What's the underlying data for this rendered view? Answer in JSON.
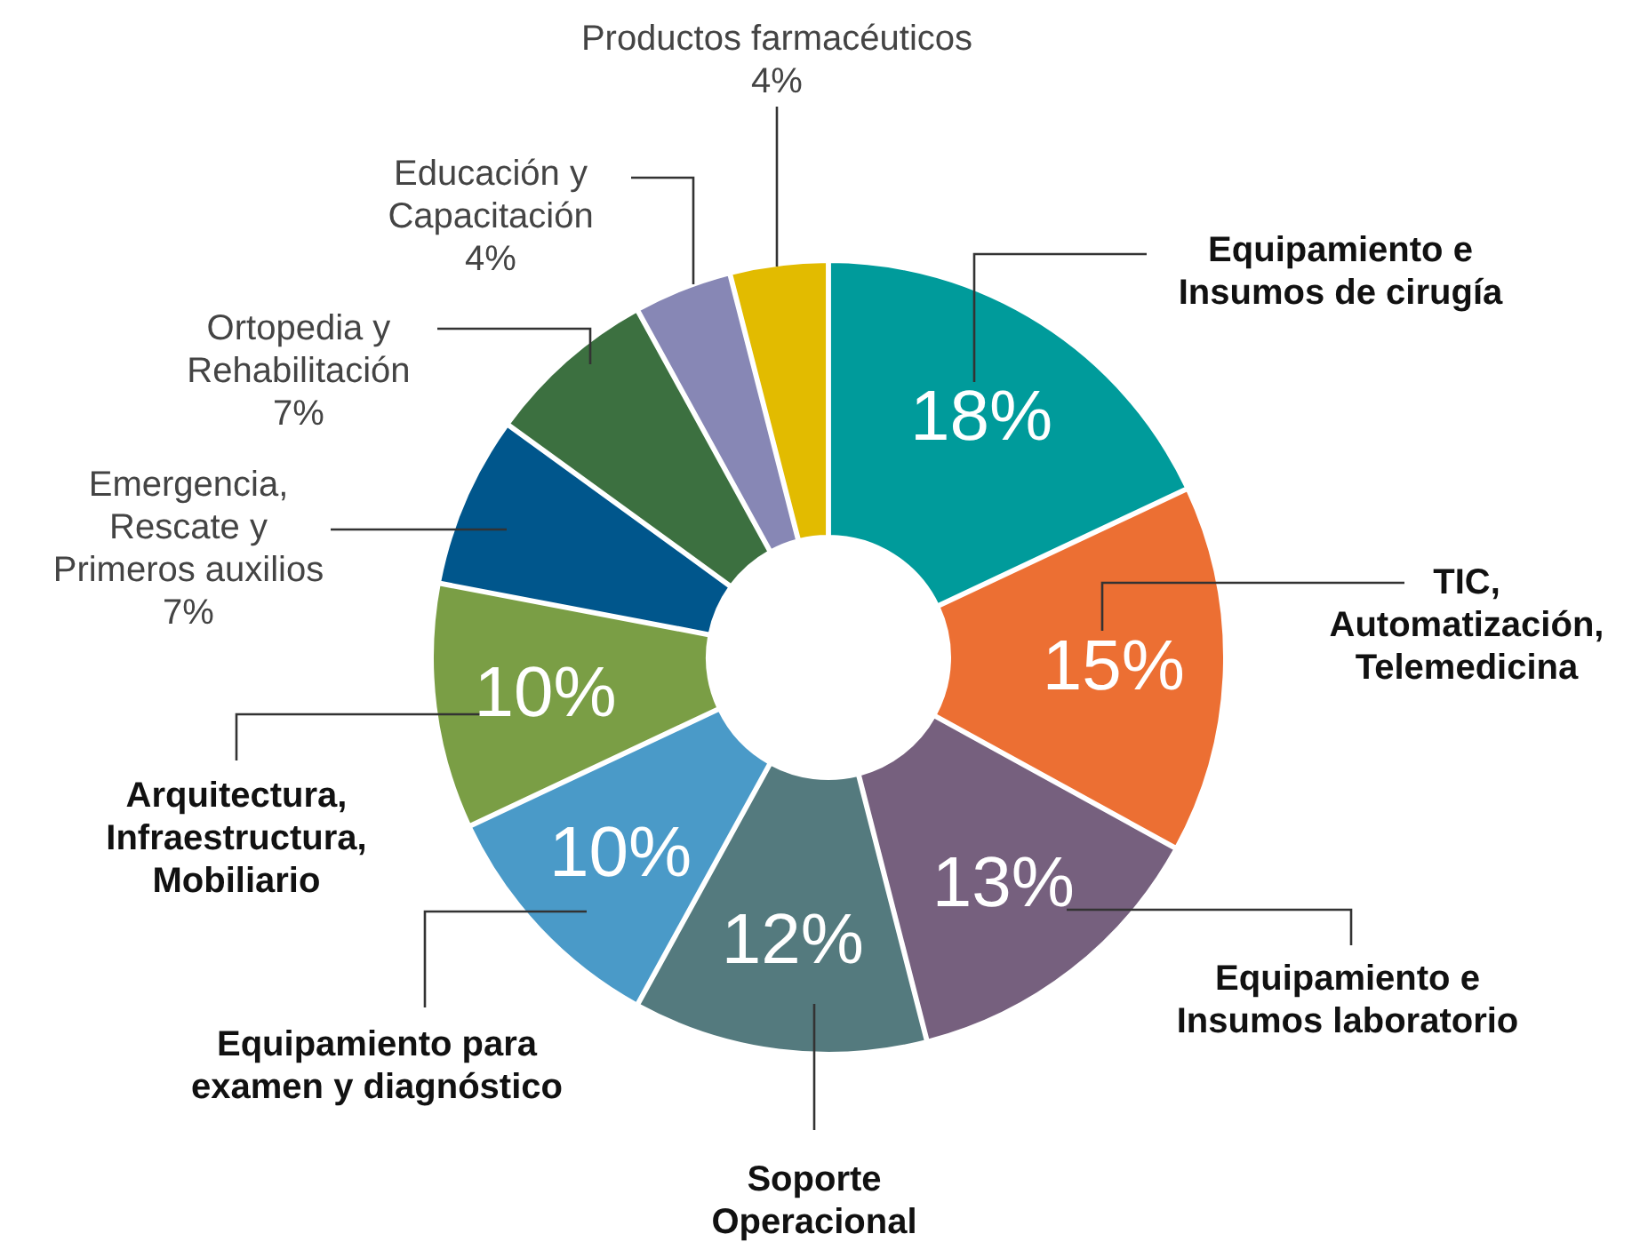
{
  "chart_data": {
    "type": "donut",
    "categories": [
      "Equipamiento e Insumos de cirugía",
      "TIC, Automatización, Telemedicina",
      "Equipamiento e Insumos laboratorio",
      "Soporte Operacional",
      "Equipamiento para examen y diagnóstico",
      "Arquitectura, Infraestructura, Mobiliario",
      "Emergencia, Rescate y Primeros auxilios",
      "Ortopedia y Rehabilitación",
      "Educación y Capacitación",
      "Productos farmacéuticos"
    ],
    "values": [
      18,
      15,
      13,
      12,
      10,
      10,
      7,
      7,
      4,
      4
    ],
    "colors": [
      "#009b9b",
      "#ec6f33",
      "#76607e",
      "#547a7e",
      "#4a9ac8",
      "#7a9e45",
      "#00568c",
      "#3c7040",
      "#8787b5",
      "#e2bb00"
    ],
    "value_labels": [
      "18%",
      "15%",
      "13%",
      "12%",
      "10%",
      "10%",
      "7%",
      "7%",
      "4%",
      "4%"
    ]
  }
}
